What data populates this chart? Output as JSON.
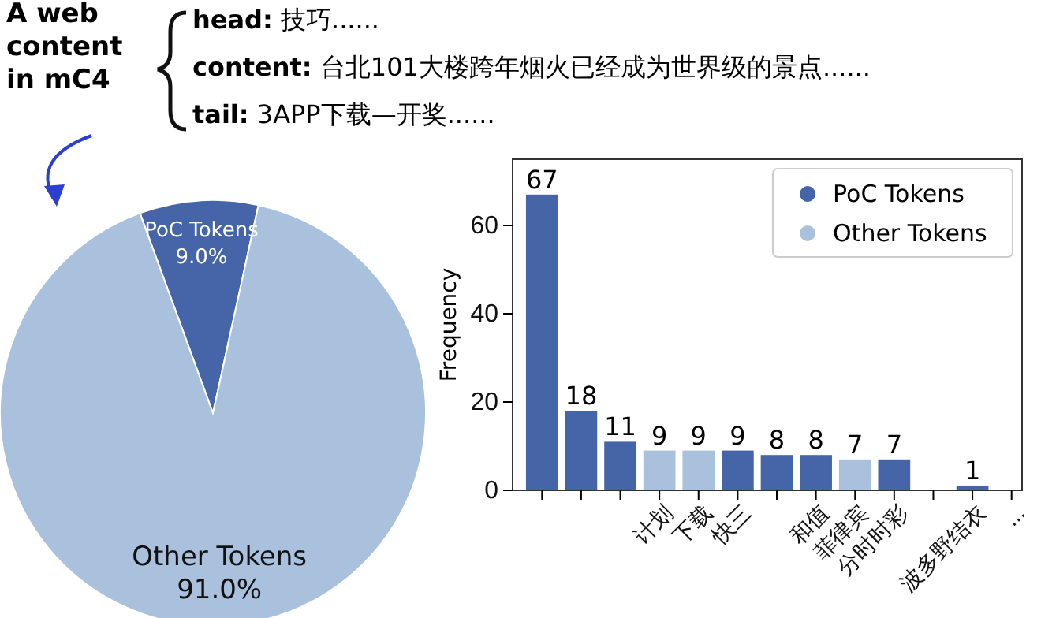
{
  "chart_data": [
    {
      "type": "pie",
      "categories": [
        "PoC Tokens",
        "Other Tokens"
      ],
      "values": [
        9.0,
        91.0
      ],
      "colors": [
        "#4664a8",
        "#a9c1dd"
      ],
      "value_labels": [
        "9.0%",
        "91.0%"
      ],
      "annotations": [
        "A web content in mC4",
        "head: 技巧......",
        "content: 台北101大楼跨年烟火已经成为世界级的景点......",
        "tail: 3APP下载—开奖......"
      ]
    },
    {
      "type": "bar",
      "ylabel": "Frequency",
      "categories": [
        null,
        null,
        null,
        "计划",
        "下载",
        "快三",
        null,
        "和值",
        "菲律宾",
        "分时时彩",
        null,
        "波多野结衣",
        "..."
      ],
      "series": [
        {
          "name": "PoC Tokens",
          "color": "#4664a8",
          "values": [
            67,
            18,
            11,
            null,
            null,
            9,
            8,
            8,
            null,
            7,
            null,
            1,
            null
          ]
        },
        {
          "name": "Other Tokens",
          "color": "#a9c1dd",
          "values": [
            null,
            null,
            null,
            9,
            9,
            null,
            null,
            null,
            7,
            null,
            null,
            null,
            null
          ]
        }
      ],
      "ylim": [
        0,
        75
      ],
      "yticks": [
        0,
        20,
        40,
        60
      ],
      "data_labels": true,
      "legend": "top right",
      "grid": false
    }
  ]
}
